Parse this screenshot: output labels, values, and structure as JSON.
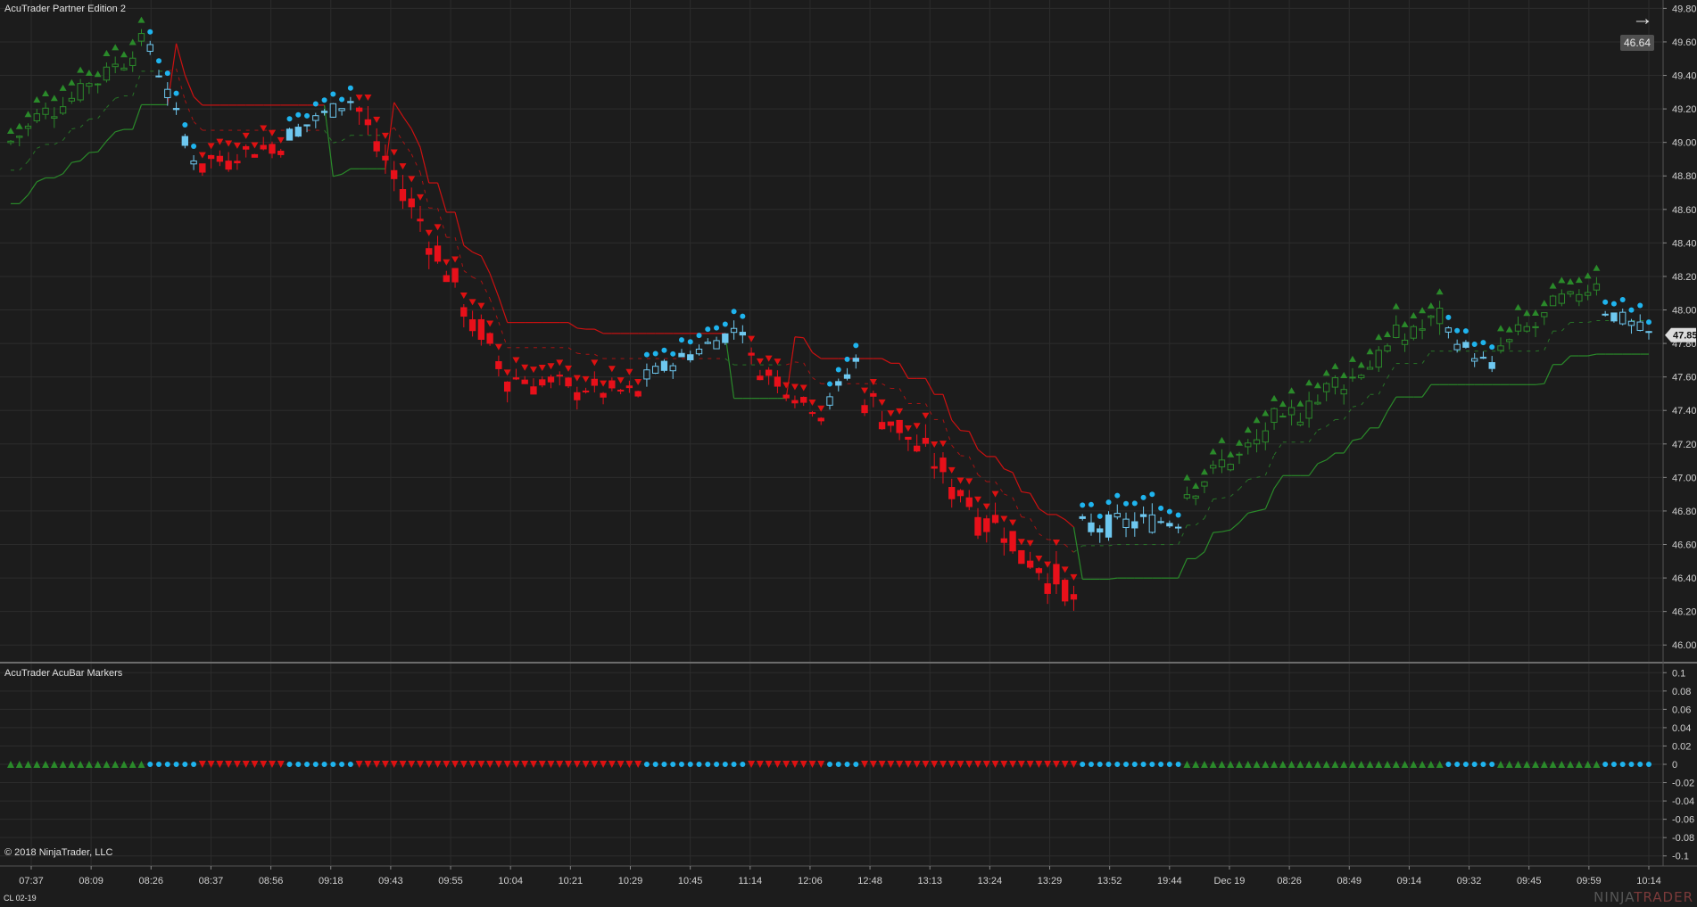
{
  "window": {
    "title": "AcuTrader Partner Edition 2"
  },
  "indicator_panel": {
    "title": "AcuTrader AcuBar Markers"
  },
  "copyright": "© 2018 NinjaTrader, LLC",
  "instrument": "CL 02-19",
  "brand": {
    "part1": "NINJA",
    "part2": "TRADER"
  },
  "badges": {
    "last_price": "47.85",
    "reference_price": "46.64"
  },
  "colors": {
    "background": "#1c1c1c",
    "grid": "#2c2c2c",
    "up_candle": "#2b8a2b",
    "down_candle": "#e8101a",
    "neutral_candle": "#6ec8f0",
    "bull_marker": "#2a8a2a",
    "bear_marker": "#dd1111",
    "neutral_marker": "#1fb4ee",
    "stop_line_bear": "#cc1111",
    "stop_line_bull": "#2a8a2a"
  },
  "chart_data": [
    {
      "type": "candlestick",
      "title": "AcuTrader Partner Edition 2",
      "ylim": [
        45.9,
        49.85
      ],
      "yticks": [
        "46.00",
        "46.20",
        "46.40",
        "46.60",
        "46.80",
        "47.00",
        "47.20",
        "47.40",
        "47.60",
        "47.80",
        "48.00",
        "48.20",
        "48.40",
        "48.60",
        "48.80",
        "49.00",
        "49.20",
        "49.40",
        "49.60",
        "49.80"
      ],
      "xticks": [
        "07:37",
        "08:09",
        "08:26",
        "08:37",
        "08:56",
        "09:18",
        "09:43",
        "09:55",
        "10:04",
        "10:21",
        "10:29",
        "10:45",
        "11:14",
        "12:06",
        "12:48",
        "13:13",
        "13:24",
        "13:29",
        "13:52",
        "19:44",
        "Dec 19",
        "08:26",
        "08:49",
        "09:14",
        "09:32",
        "09:45",
        "09:59",
        "10:14"
      ],
      "segments": [
        {
          "n": 16,
          "from": 49.0,
          "to": 49.55,
          "trend": "up",
          "noise": 0.12
        },
        {
          "n": 6,
          "from": 49.55,
          "to": 48.9,
          "trend": "neutral",
          "noise": 0.1
        },
        {
          "n": 10,
          "from": 48.9,
          "to": 49.0,
          "trend": "down",
          "noise": 0.12
        },
        {
          "n": 8,
          "from": 49.05,
          "to": 49.25,
          "trend": "neutral",
          "noise": 0.1
        },
        {
          "n": 18,
          "from": 49.2,
          "to": 47.6,
          "trend": "down",
          "noise": 0.18
        },
        {
          "n": 15,
          "from": 47.6,
          "to": 47.5,
          "trend": "down",
          "noise": 0.12
        },
        {
          "n": 12,
          "from": 47.6,
          "to": 47.9,
          "trend": "neutral",
          "noise": 0.1
        },
        {
          "n": 9,
          "from": 47.7,
          "to": 47.4,
          "trend": "down",
          "noise": 0.12
        },
        {
          "n": 4,
          "from": 47.45,
          "to": 47.7,
          "trend": "neutral",
          "noise": 0.1
        },
        {
          "n": 25,
          "from": 47.5,
          "to": 46.3,
          "trend": "down",
          "noise": 0.18
        },
        {
          "n": 12,
          "from": 46.7,
          "to": 46.75,
          "trend": "neutral",
          "noise": 0.14
        },
        {
          "n": 30,
          "from": 46.9,
          "to": 47.95,
          "trend": "up",
          "noise": 0.14
        },
        {
          "n": 6,
          "from": 47.85,
          "to": 47.65,
          "trend": "neutral",
          "noise": 0.1
        },
        {
          "n": 12,
          "from": 47.75,
          "to": 48.15,
          "trend": "up",
          "noise": 0.12
        },
        {
          "n": 6,
          "from": 48.0,
          "to": 47.85,
          "trend": "neutral",
          "noise": 0.1
        }
      ],
      "last_price": 47.85
    },
    {
      "type": "scatter",
      "title": "AcuTrader AcuBar Markers",
      "ylim": [
        -0.11,
        0.11
      ],
      "yticks": [
        "0.1",
        "0.08",
        "0.06",
        "0.04",
        "0.02",
        "0",
        "-0.02",
        "-0.04",
        "-0.06",
        "-0.08",
        "-0.1"
      ],
      "values_all": 0
    }
  ]
}
